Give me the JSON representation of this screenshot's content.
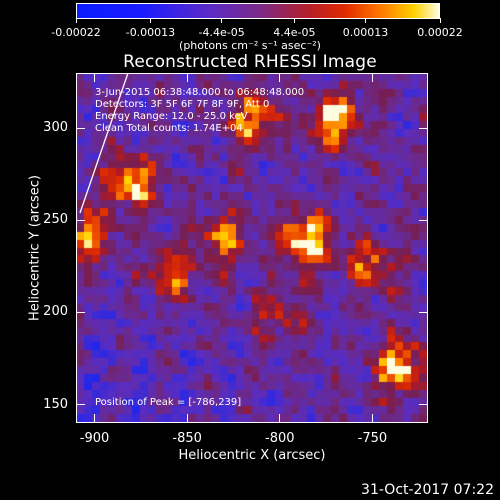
{
  "colorbar": {
    "tick_labels": [
      "-0.00022",
      "-0.00013",
      "-4.4e-05",
      "4.4e-05",
      "0.00013",
      "0.00022"
    ],
    "units": "(photons cm⁻² s⁻¹ asec⁻²)"
  },
  "title": "Reconstructed RHESSI Image",
  "info": {
    "time_range": "3-Jun-2015 06:38:48.000 to 06:48:48.000",
    "detectors": "Detectors: 3F 5F 6F 7F 8F 9F, Att 0",
    "energy_range": "Energy Range: 12.0 - 25.0 keV",
    "method_counts": "Clean     Total counts: 1.74E+04",
    "peak_position": "Position of Peak = [-786,239]"
  },
  "axes": {
    "xlabel": "Heliocentric X (arcsec)",
    "ylabel": "Heliocentric Y (arcsec)",
    "xticks": [
      "-900",
      "-850",
      "-800",
      "-750"
    ],
    "yticks": [
      "300",
      "250",
      "200",
      "150"
    ]
  },
  "timestamp": "31-Oct-2017 07:22",
  "chart_data": {
    "type": "heatmap",
    "title": "Reconstructed RHESSI Image",
    "xlabel": "Heliocentric X (arcsec)",
    "ylabel": "Heliocentric Y (arcsec)",
    "xlim": [
      -910,
      -720
    ],
    "ylim": [
      140,
      330
    ],
    "colorbar_range": [
      -0.00022,
      0.00022
    ],
    "colorbar_unit": "photons cm-2 s-1 asec-2",
    "peak": [
      -786,
      239
    ],
    "bright_regions": [
      {
        "x": -786,
        "y": 239,
        "level": 1.0
      },
      {
        "x": -770,
        "y": 305,
        "level": 0.85
      },
      {
        "x": -880,
        "y": 270,
        "level": 0.8
      },
      {
        "x": -815,
        "y": 305,
        "level": 0.75
      },
      {
        "x": -735,
        "y": 170,
        "level": 0.9
      },
      {
        "x": -750,
        "y": 225,
        "level": 0.6
      },
      {
        "x": -830,
        "y": 240,
        "level": 0.6
      },
      {
        "x": -858,
        "y": 220,
        "level": 0.55
      },
      {
        "x": -905,
        "y": 240,
        "level": 0.7
      },
      {
        "x": -800,
        "y": 200,
        "level": 0.45
      }
    ]
  }
}
